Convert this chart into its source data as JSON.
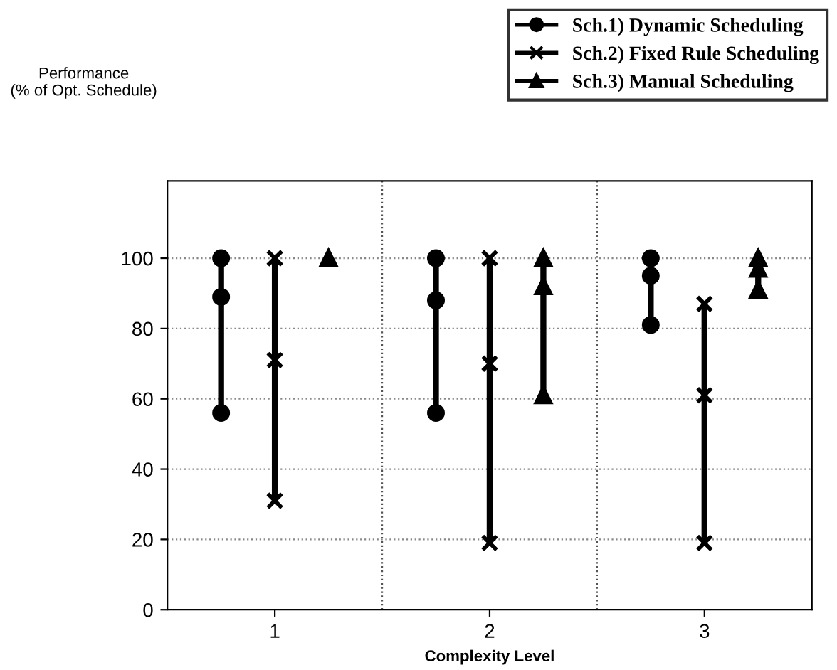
{
  "chart_data": {
    "type": "line",
    "xlabel": "Complexity Level",
    "annotations": [
      "Performance\n(% of Opt. Schedule)"
    ],
    "series": [
      {
        "name": "Sch.1) Dynamic Scheduling",
        "color": "#000000",
        "marker": "circle",
        "x": [
          0.75,
          0.75,
          0.75
        ],
        "values": [
          56,
          89,
          100
        ]
      },
      {
        "color": "#000000",
        "marker": "circle",
        "x": [
          1.75,
          1.75,
          1.75
        ],
        "values": [
          56,
          88,
          100
        ]
      },
      {
        "color": "#000000",
        "marker": "circle",
        "x": [
          2.75,
          2.75,
          2.75
        ],
        "values": [
          81,
          95,
          100
        ]
      },
      {
        "name": "Sch.2) Fixed Rule Scheduling",
        "color": "#000000",
        "marker": "cross",
        "x": [
          1,
          1,
          1
        ],
        "values": [
          31,
          71,
          100
        ]
      },
      {
        "color": "#000000",
        "marker": "cross",
        "x": [
          2,
          2,
          2
        ],
        "values": [
          19,
          70,
          100
        ]
      },
      {
        "color": "#000000",
        "marker": "cross",
        "x": [
          3,
          3,
          3
        ],
        "values": [
          19,
          61,
          87
        ]
      },
      {
        "name": "Sch.3) Manual Scheduling",
        "color": "#000000",
        "marker": "triangle",
        "x": [
          1.25
        ],
        "values": [
          100
        ]
      },
      {
        "color": "#000000",
        "marker": "triangle",
        "x": [
          2.25,
          2.25,
          2.25
        ],
        "values": [
          61,
          92,
          100
        ]
      },
      {
        "color": "#000000",
        "marker": "triangle",
        "x": [
          3.25,
          3.25,
          3.25
        ],
        "values": [
          91,
          97,
          100
        ]
      }
    ],
    "xlim": [
      0.5,
      3.5
    ],
    "xticks": [
      1,
      2,
      3
    ],
    "ylim": [
      0,
      122
    ],
    "yticks": [
      0,
      20,
      40,
      60,
      80,
      100
    ],
    "grid": "y",
    "ref_lines": [
      {
        "axis": "x",
        "value": 1.5,
        "line_style": "dotted"
      },
      {
        "axis": "x",
        "value": 2.5,
        "line_style": "dotted"
      }
    ],
    "legend": "top right"
  }
}
